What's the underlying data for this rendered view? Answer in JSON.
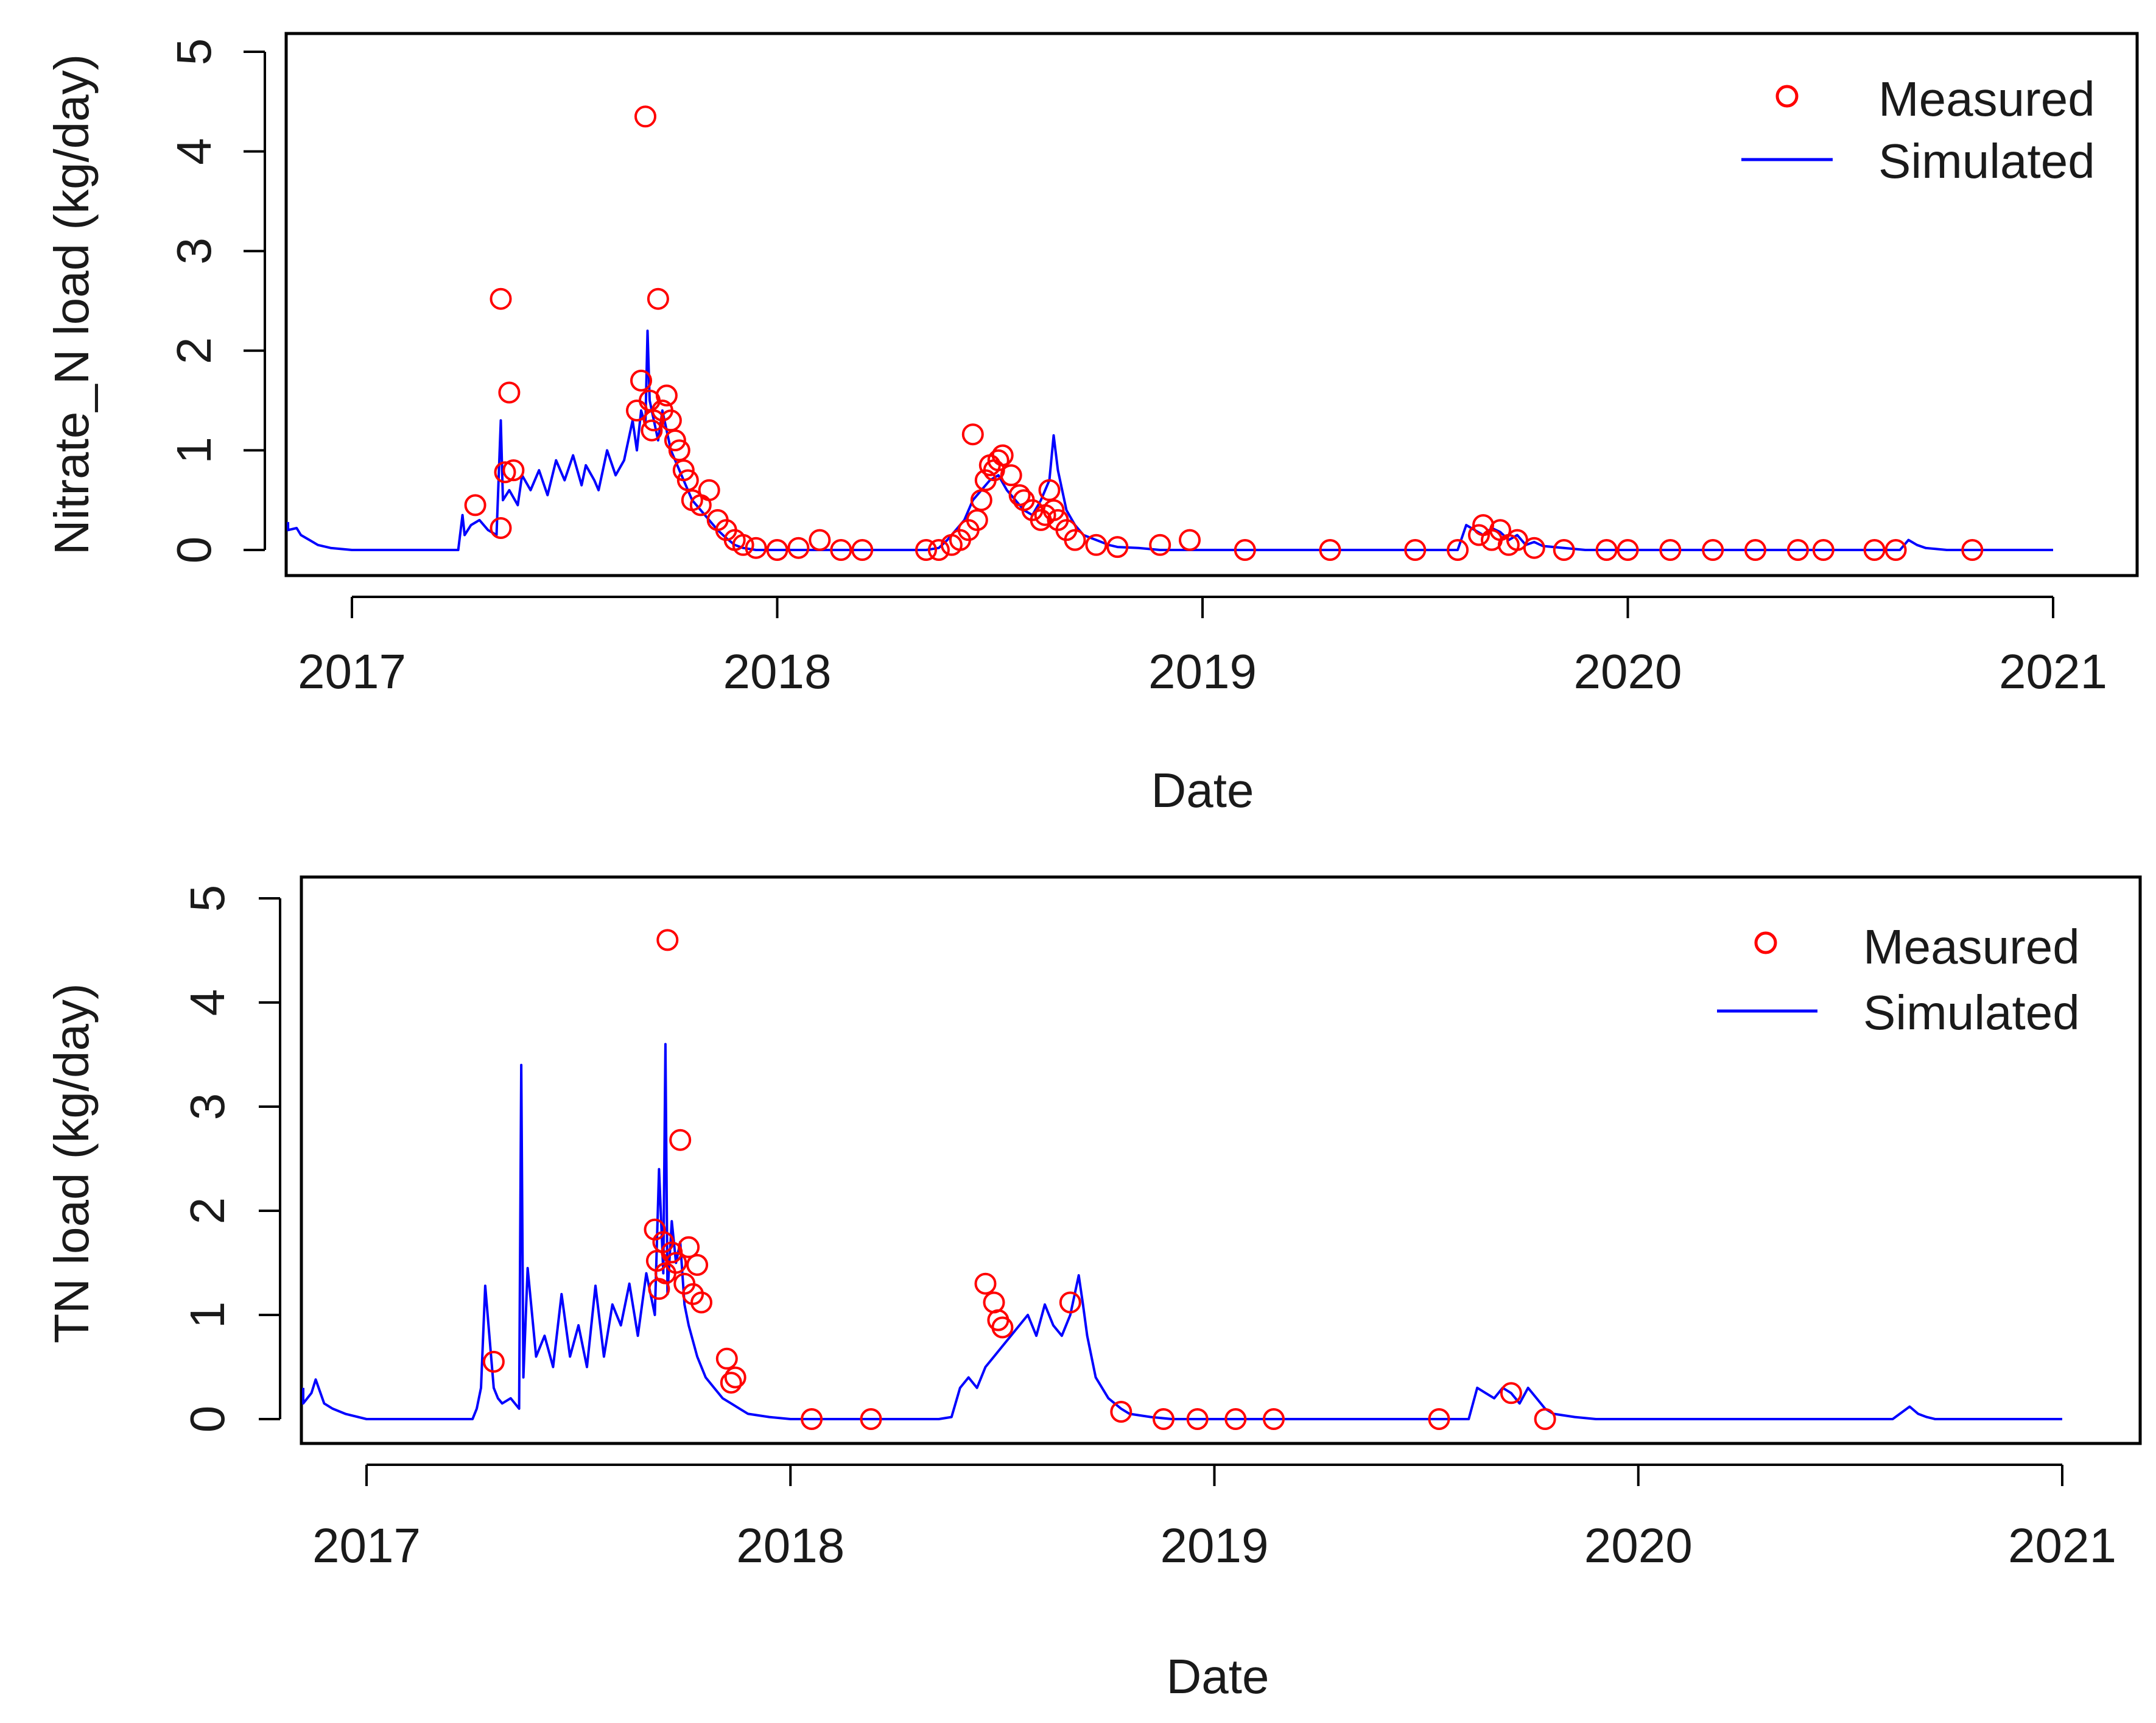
{
  "chart_data": [
    {
      "type": "line",
      "xlabel": "Date",
      "ylabel": "Nitrate_N load (kg/day)",
      "xlim": [
        2016.84,
        2021.06
      ],
      "ylim": [
        -0.2,
        5.25
      ],
      "x_ticks": [
        2017,
        2018,
        2019,
        2020,
        2021
      ],
      "x_tick_labels": [
        "2017",
        "2018",
        "2019",
        "2020",
        "2021"
      ],
      "y_ticks": [
        0,
        1,
        2,
        3,
        4,
        5
      ],
      "y_tick_labels": [
        "0",
        "1",
        "2",
        "3",
        "4",
        "5"
      ],
      "legend": {
        "position": "top-right",
        "measured_label": "Measured",
        "simulated_label": "Simulated"
      },
      "colors": {
        "measured": "#ff0000",
        "simulated": "#0000ff"
      },
      "series": [
        {
          "name": "Simulated",
          "style": "line",
          "x": [
            2016.84,
            2016.85,
            2016.87,
            2016.88,
            2016.9,
            2016.92,
            2016.95,
            2017.0,
            2017.05,
            2017.1,
            2017.2,
            2017.25,
            2017.26,
            2017.265,
            2017.28,
            2017.3,
            2017.32,
            2017.34,
            2017.35,
            2017.355,
            2017.37,
            2017.39,
            2017.4,
            2017.42,
            2017.44,
            2017.46,
            2017.48,
            2017.5,
            2017.52,
            2017.54,
            2017.55,
            2017.57,
            2017.58,
            2017.6,
            2017.62,
            2017.64,
            2017.65,
            2017.66,
            2017.67,
            2017.68,
            2017.69,
            2017.695,
            2017.7,
            2017.71,
            2017.72,
            2017.73,
            2017.74,
            2017.75,
            2017.76,
            2017.78,
            2017.8,
            2017.82,
            2017.84,
            2017.86,
            2017.88,
            2017.9,
            2017.92,
            2017.95,
            2018.0,
            2018.1,
            2018.2,
            2018.3,
            2018.35,
            2018.38,
            2018.4,
            2018.42,
            2018.44,
            2018.46,
            2018.48,
            2018.5,
            2018.52,
            2018.54,
            2018.56,
            2018.58,
            2018.6,
            2018.62,
            2018.64,
            2018.65,
            2018.66,
            2018.67,
            2018.68,
            2018.7,
            2018.72,
            2018.75,
            2018.78,
            2018.8,
            2018.85,
            2018.9,
            2019.0,
            2019.2,
            2019.4,
            2019.6,
            2019.62,
            2019.64,
            2019.66,
            2019.68,
            2019.7,
            2019.72,
            2019.74,
            2019.76,
            2019.78,
            2019.8,
            2019.85,
            2019.9,
            2020.0,
            2020.3,
            2020.6,
            2020.64,
            2020.66,
            2020.68,
            2020.7,
            2020.75,
            2020.8,
            2021.0
          ],
          "y": [
            0.28,
            0.2,
            0.22,
            0.15,
            0.1,
            0.05,
            0.02,
            0.0,
            0.0,
            0.0,
            0.0,
            0.0,
            0.35,
            0.15,
            0.25,
            0.3,
            0.2,
            0.15,
            1.3,
            0.5,
            0.6,
            0.45,
            0.75,
            0.6,
            0.8,
            0.55,
            0.9,
            0.7,
            0.95,
            0.65,
            0.85,
            0.7,
            0.6,
            1.0,
            0.75,
            0.9,
            1.1,
            1.3,
            1.0,
            1.4,
            1.25,
            2.2,
            1.5,
            1.3,
            1.1,
            1.4,
            1.2,
            1.0,
            0.9,
            0.7,
            0.5,
            0.4,
            0.3,
            0.2,
            0.12,
            0.05,
            0.02,
            0.0,
            0.0,
            0.0,
            0.0,
            0.0,
            0.0,
            0.02,
            0.1,
            0.2,
            0.3,
            0.5,
            0.6,
            0.7,
            0.75,
            0.6,
            0.5,
            0.4,
            0.35,
            0.5,
            0.7,
            1.15,
            0.8,
            0.6,
            0.4,
            0.25,
            0.15,
            0.1,
            0.05,
            0.03,
            0.02,
            0.0,
            0.0,
            0.0,
            0.0,
            0.0,
            0.25,
            0.2,
            0.15,
            0.22,
            0.18,
            0.1,
            0.15,
            0.05,
            0.08,
            0.04,
            0.02,
            0.0,
            0.0,
            0.0,
            0.0,
            0.0,
            0.1,
            0.05,
            0.02,
            0.0,
            0.0,
            0.0
          ]
        },
        {
          "name": "Measured",
          "style": "points",
          "x": [
            2017.29,
            2017.35,
            2017.36,
            2017.37,
            2017.38,
            2017.35,
            2017.67,
            2017.68,
            2017.69,
            2017.7,
            2017.705,
            2017.71,
            2017.72,
            2017.73,
            2017.74,
            2017.75,
            2017.76,
            2017.77,
            2017.78,
            2017.79,
            2017.8,
            2017.82,
            2017.84,
            2017.86,
            2017.88,
            2017.9,
            2017.92,
            2017.95,
            2018.0,
            2018.05,
            2018.1,
            2018.15,
            2018.2,
            2018.35,
            2018.38,
            2018.41,
            2018.43,
            2018.45,
            2018.46,
            2018.47,
            2018.48,
            2018.49,
            2018.5,
            2018.51,
            2018.52,
            2018.53,
            2018.55,
            2018.57,
            2018.58,
            2018.6,
            2018.62,
            2018.63,
            2018.64,
            2018.65,
            2018.66,
            2018.68,
            2018.7,
            2018.75,
            2018.8,
            2018.9,
            2018.97,
            2019.1,
            2019.3,
            2019.5,
            2019.6,
            2019.65,
            2019.66,
            2019.68,
            2019.7,
            2019.72,
            2019.74,
            2019.78,
            2019.85,
            2019.95,
            2020.0,
            2020.1,
            2020.2,
            2020.3,
            2020.4,
            2020.46,
            2020.58,
            2020.63,
            2020.81
          ],
          "y": [
            0.45,
            2.52,
            0.78,
            1.58,
            0.8,
            0.22,
            1.4,
            1.7,
            4.35,
            1.5,
            1.2,
            1.3,
            2.52,
            1.4,
            1.55,
            1.3,
            1.1,
            1.0,
            0.8,
            0.7,
            0.5,
            0.45,
            0.6,
            0.3,
            0.2,
            0.1,
            0.05,
            0.02,
            0.0,
            0.02,
            0.1,
            0.0,
            0.0,
            0.0,
            0.0,
            0.05,
            0.1,
            0.2,
            1.16,
            0.3,
            0.5,
            0.7,
            0.85,
            0.8,
            0.9,
            0.95,
            0.75,
            0.55,
            0.5,
            0.4,
            0.3,
            0.35,
            0.6,
            0.4,
            0.3,
            0.2,
            0.1,
            0.05,
            0.03,
            0.05,
            0.1,
            0.0,
            0.0,
            0.0,
            0.0,
            0.15,
            0.25,
            0.1,
            0.2,
            0.05,
            0.1,
            0.02,
            0.0,
            0.0,
            0.0,
            0.0,
            0.0,
            0.0,
            0.0,
            0.0,
            0.0,
            0.0,
            0.0
          ]
        }
      ]
    },
    {
      "type": "line",
      "xlabel": "Date",
      "ylabel": "TN load (kg/day)",
      "xlim": [
        2016.84,
        2021.06
      ],
      "ylim": [
        -0.2,
        5.25
      ],
      "x_ticks": [
        2017,
        2018,
        2019,
        2020,
        2021
      ],
      "x_tick_labels": [
        "2017",
        "2018",
        "2019",
        "2020",
        "2021"
      ],
      "y_ticks": [
        0,
        1,
        2,
        3,
        4,
        5
      ],
      "y_tick_labels": [
        "0",
        "1",
        "2",
        "3",
        "4",
        "5"
      ],
      "legend": {
        "position": "top-right",
        "measured_label": "Measured",
        "simulated_label": "Simulated"
      },
      "colors": {
        "measured": "#ff0000",
        "simulated": "#0000ff"
      },
      "series": [
        {
          "name": "Simulated",
          "style": "line",
          "x": [
            2016.84,
            2016.85,
            2016.87,
            2016.88,
            2016.9,
            2016.92,
            2016.95,
            2017.0,
            2017.1,
            2017.2,
            2017.25,
            2017.26,
            2017.27,
            2017.28,
            2017.3,
            2017.31,
            2017.32,
            2017.34,
            2017.36,
            2017.365,
            2017.37,
            2017.38,
            2017.4,
            2017.42,
            2017.44,
            2017.46,
            2017.48,
            2017.5,
            2017.52,
            2017.54,
            2017.56,
            2017.58,
            2017.6,
            2017.62,
            2017.64,
            2017.66,
            2017.68,
            2017.69,
            2017.7,
            2017.705,
            2017.71,
            2017.72,
            2017.73,
            2017.74,
            2017.75,
            2017.76,
            2017.78,
            2017.8,
            2017.82,
            2017.84,
            2017.86,
            2017.88,
            2017.9,
            2017.95,
            2018.0,
            2018.1,
            2018.2,
            2018.3,
            2018.35,
            2018.38,
            2018.4,
            2018.42,
            2018.44,
            2018.46,
            2018.48,
            2018.5,
            2018.52,
            2018.54,
            2018.56,
            2018.58,
            2018.6,
            2018.62,
            2018.64,
            2018.66,
            2018.68,
            2018.69,
            2018.7,
            2018.72,
            2018.75,
            2018.78,
            2018.8,
            2018.85,
            2018.9,
            2019.0,
            2019.2,
            2019.4,
            2019.6,
            2019.62,
            2019.64,
            2019.66,
            2019.68,
            2019.7,
            2019.72,
            2019.74,
            2019.76,
            2019.78,
            2019.8,
            2019.85,
            2019.9,
            2020.0,
            2020.3,
            2020.6,
            2020.64,
            2020.66,
            2020.68,
            2020.7,
            2020.75,
            2020.8,
            2021.0
          ],
          "y": [
            0.3,
            0.15,
            0.25,
            0.38,
            0.15,
            0.1,
            0.05,
            0.0,
            0.0,
            0.0,
            0.0,
            0.1,
            0.3,
            1.28,
            0.3,
            0.2,
            0.15,
            0.2,
            0.1,
            3.4,
            0.4,
            1.45,
            0.6,
            0.8,
            0.5,
            1.2,
            0.6,
            0.9,
            0.5,
            1.28,
            0.6,
            1.1,
            0.9,
            1.3,
            0.8,
            1.4,
            1.0,
            2.4,
            1.4,
            3.6,
            1.2,
            1.9,
            1.5,
            1.7,
            1.1,
            0.9,
            0.6,
            0.4,
            0.3,
            0.2,
            0.15,
            0.1,
            0.05,
            0.02,
            0.0,
            0.0,
            0.0,
            0.0,
            0.0,
            0.02,
            0.3,
            0.4,
            0.3,
            0.5,
            0.6,
            0.7,
            0.8,
            0.9,
            1.0,
            0.8,
            1.1,
            0.9,
            0.8,
            1.0,
            1.38,
            1.1,
            0.8,
            0.4,
            0.2,
            0.1,
            0.05,
            0.02,
            0.0,
            0.0,
            0.0,
            0.0,
            0.0,
            0.3,
            0.25,
            0.2,
            0.3,
            0.25,
            0.15,
            0.3,
            0.2,
            0.1,
            0.05,
            0.02,
            0.0,
            0.0,
            0.0,
            0.0,
            0.12,
            0.05,
            0.02,
            0.0,
            0.0,
            0.0,
            0.0
          ]
        },
        {
          "name": "Measured",
          "style": "points",
          "x": [
            2017.3,
            2017.68,
            2017.685,
            2017.69,
            2017.7,
            2017.705,
            2017.71,
            2017.72,
            2017.73,
            2017.74,
            2017.75,
            2017.76,
            2017.77,
            2017.78,
            2017.79,
            2017.85,
            2017.86,
            2017.87,
            2018.05,
            2018.19,
            2018.46,
            2018.48,
            2018.49,
            2018.5,
            2018.66,
            2018.78,
            2018.88,
            2018.96,
            2019.05,
            2019.14,
            2019.53,
            2019.7,
            2019.78
          ],
          "y": [
            0.55,
            1.82,
            1.52,
            1.25,
            1.7,
            1.4,
            4.6,
            1.6,
            1.5,
            2.68,
            1.3,
            1.65,
            1.2,
            1.48,
            1.12,
            0.58,
            0.35,
            0.4,
            0.0,
            0.0,
            1.3,
            1.12,
            0.95,
            0.88,
            1.12,
            0.07,
            0.0,
            0.0,
            0.0,
            0.0,
            0.0,
            0.25,
            0.0
          ]
        }
      ]
    }
  ]
}
